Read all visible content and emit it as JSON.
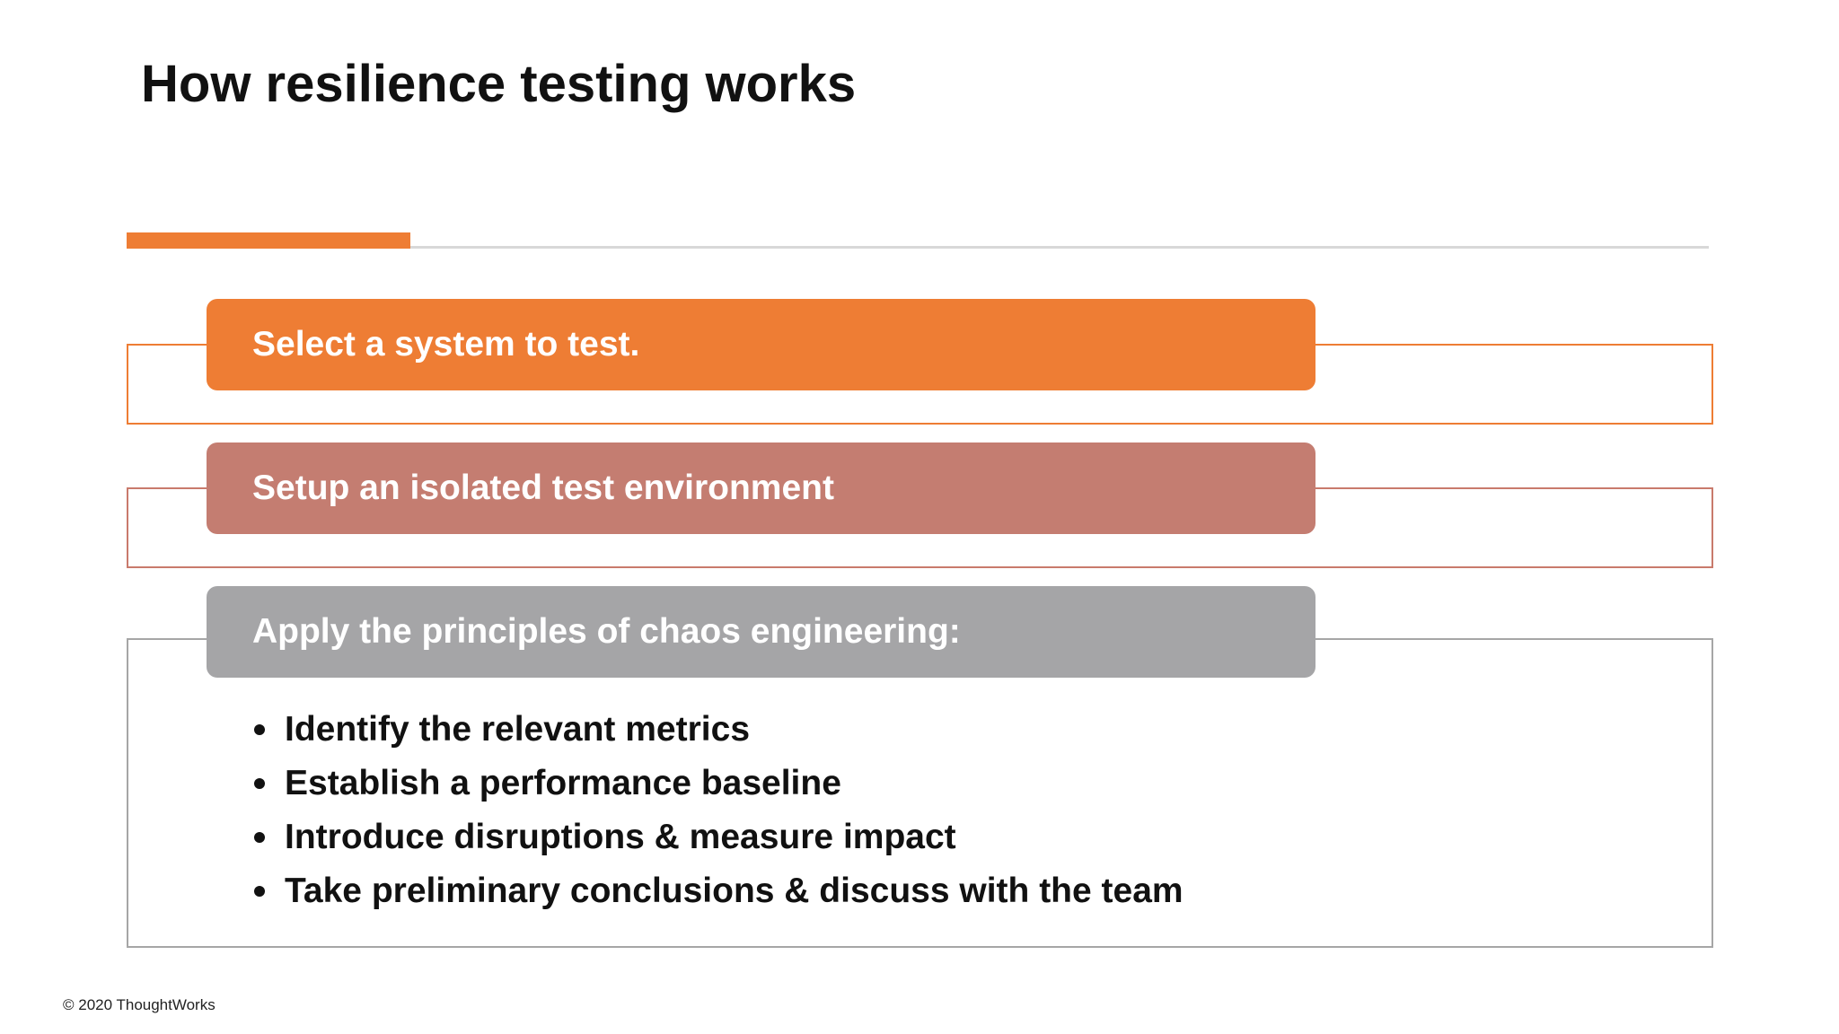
{
  "slide": {
    "title": "How resilience testing works",
    "steps": [
      {
        "label": "Select a system to test.",
        "color": "#ee7d34"
      },
      {
        "label": "Setup an isolated test environment",
        "color": "#c47d71"
      },
      {
        "label": "Apply the principles of chaos engineering:",
        "color": "#a5a5a7"
      }
    ],
    "bullets": [
      "Identify the relevant metrics",
      "Establish a performance baseline",
      "Introduce disruptions & measure impact",
      "Take preliminary conclusions & discuss with the team"
    ],
    "footer": "© 2020 ThoughtWorks",
    "colors": {
      "accent": "#ee7d34",
      "divider": "#d8d8d8",
      "text": "#111111"
    }
  }
}
